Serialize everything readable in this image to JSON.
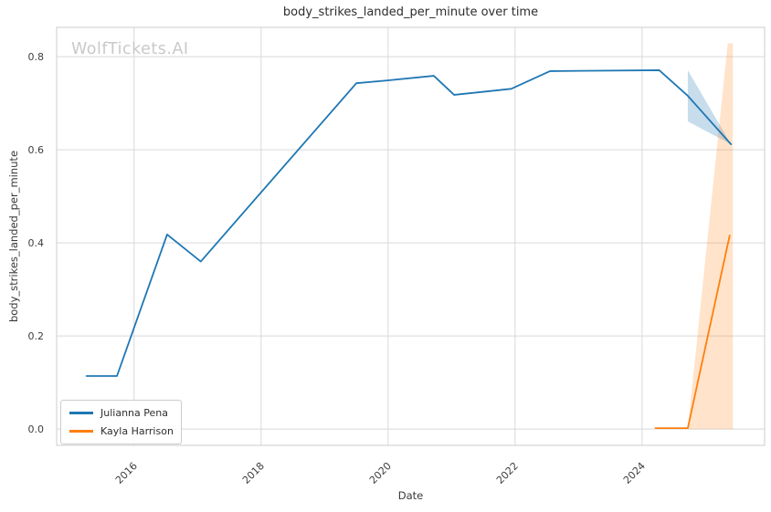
{
  "watermark": "WolfTickets.AI",
  "colors": {
    "grid": "#d9d9d9",
    "spine": "#cccccc",
    "tick_text": "#3d3d3d",
    "title_text": "#2e2e2e",
    "watermark_text": "#c9c9c9",
    "background": "#ffffff",
    "series_blue": "#1f77b4",
    "series_orange": "#ff7f0e"
  },
  "chart_data": {
    "type": "line",
    "title": "body_strikes_landed_per_minute over time",
    "xlabel": "Date",
    "ylabel": "body_strikes_landed_per_minute",
    "grid": true,
    "legend_position": "lower left",
    "x_ticks": [
      "2016",
      "2018",
      "2020",
      "2022",
      "2024"
    ],
    "x_tick_values": [
      2016,
      2018,
      2020,
      2022,
      2024
    ],
    "y_ticks": [
      "0.0",
      "0.2",
      "0.4",
      "0.6",
      "0.8"
    ],
    "y_tick_values": [
      0.0,
      0.2,
      0.4,
      0.6,
      0.8
    ],
    "x_range": [
      2014.78,
      2025.93
    ],
    "y_range": [
      -0.035,
      0.863
    ],
    "series": [
      {
        "name": "Julianna Pena",
        "color": "#1f77b4",
        "x": [
          2015.25,
          2015.73,
          2016.52,
          2017.05,
          2019.5,
          2019.99,
          2020.72,
          2021.04,
          2021.94,
          2022.55,
          2024.27,
          2024.72,
          2025.4
        ],
        "y": [
          0.114,
          0.114,
          0.418,
          0.36,
          0.743,
          0.749,
          0.759,
          0.718,
          0.731,
          0.769,
          0.771,
          0.716,
          0.612
        ]
      },
      {
        "name": "Kayla Harrison",
        "color": "#ff7f0e",
        "x": [
          2024.21,
          2024.72,
          2025.38
        ],
        "y": [
          0.002,
          0.002,
          0.416
        ]
      }
    ],
    "bands": [
      {
        "series": "Julianna Pena",
        "color": "#1f77b4",
        "opacity": 0.25,
        "points": [
          [
            2024.72,
            0.771
          ],
          [
            2025.4,
            0.612
          ],
          [
            2024.72,
            0.661
          ]
        ]
      },
      {
        "series": "Kayla Harrison",
        "color": "#ff7f0e",
        "opacity": 0.22,
        "points": [
          [
            2024.72,
            0.0
          ],
          [
            2025.35,
            0.829
          ],
          [
            2025.43,
            0.829
          ],
          [
            2025.43,
            0.0
          ]
        ]
      }
    ]
  }
}
